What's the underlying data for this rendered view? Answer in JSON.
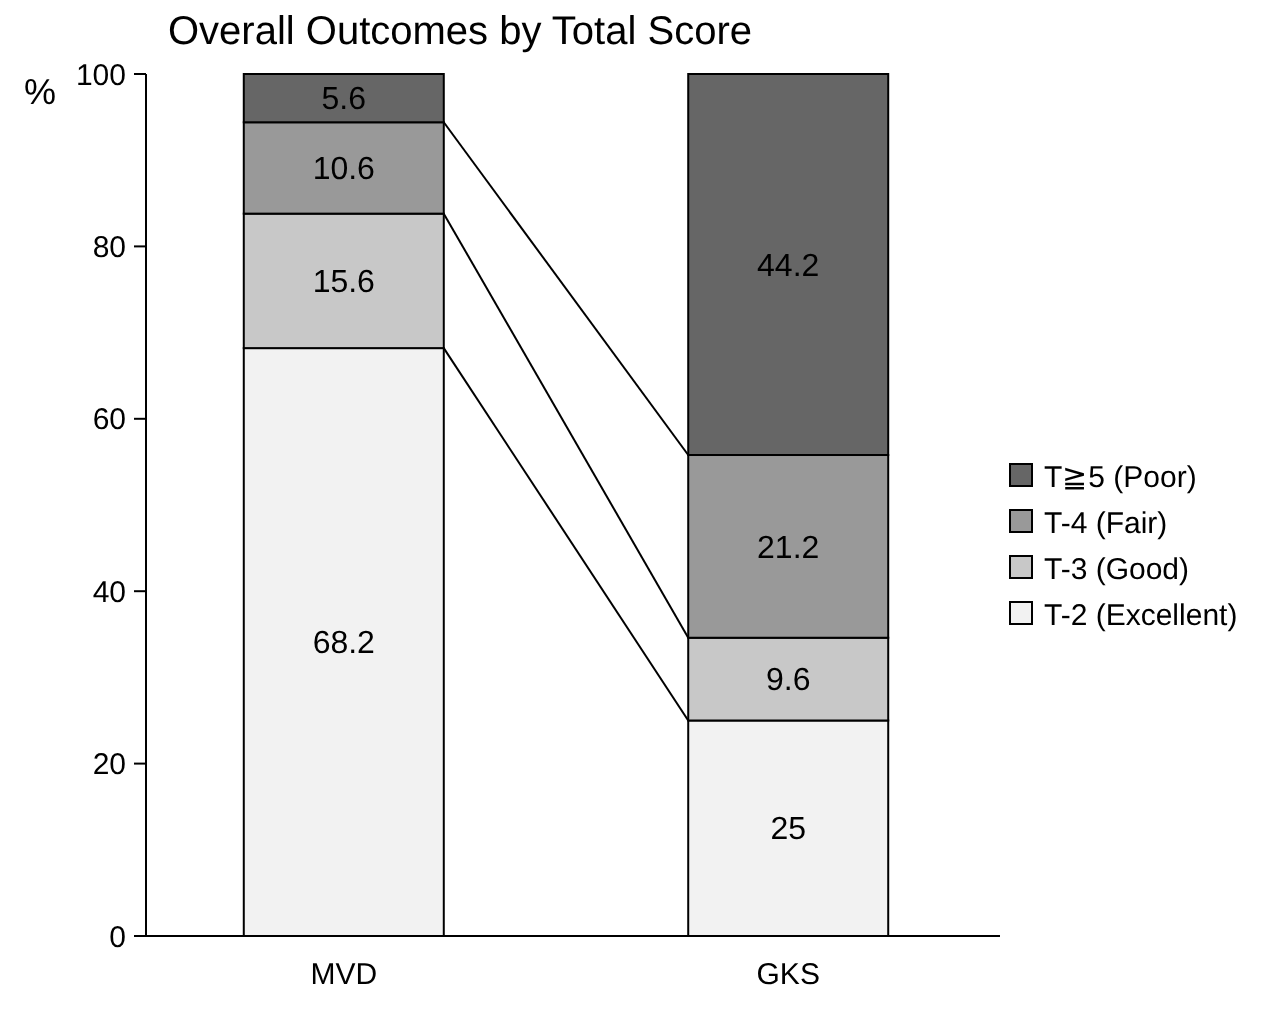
{
  "chart_data": {
    "type": "bar",
    "title": "Overall Outcomes by Total Score",
    "ylabel": "%",
    "categories": [
      "MVD",
      "GKS"
    ],
    "stacked": true,
    "series": [
      {
        "name": "T-2 (Excellent)",
        "color": "#f2f2f2",
        "values": [
          68.2,
          25
        ]
      },
      {
        "name": "T-3 (Good)",
        "color": "#c8c8c8",
        "values": [
          15.6,
          9.6
        ]
      },
      {
        "name": "T-4 (Fair)",
        "color": "#999999",
        "values": [
          10.6,
          21.2
        ]
      },
      {
        "name": "T≧5 (Poor)",
        "color": "#666666",
        "values": [
          5.6,
          44.2
        ]
      }
    ],
    "ylim": [
      0,
      100
    ],
    "yticks": [
      0,
      20,
      40,
      60,
      80,
      100
    ],
    "data_labels": true,
    "legend": "right",
    "grid": false
  }
}
